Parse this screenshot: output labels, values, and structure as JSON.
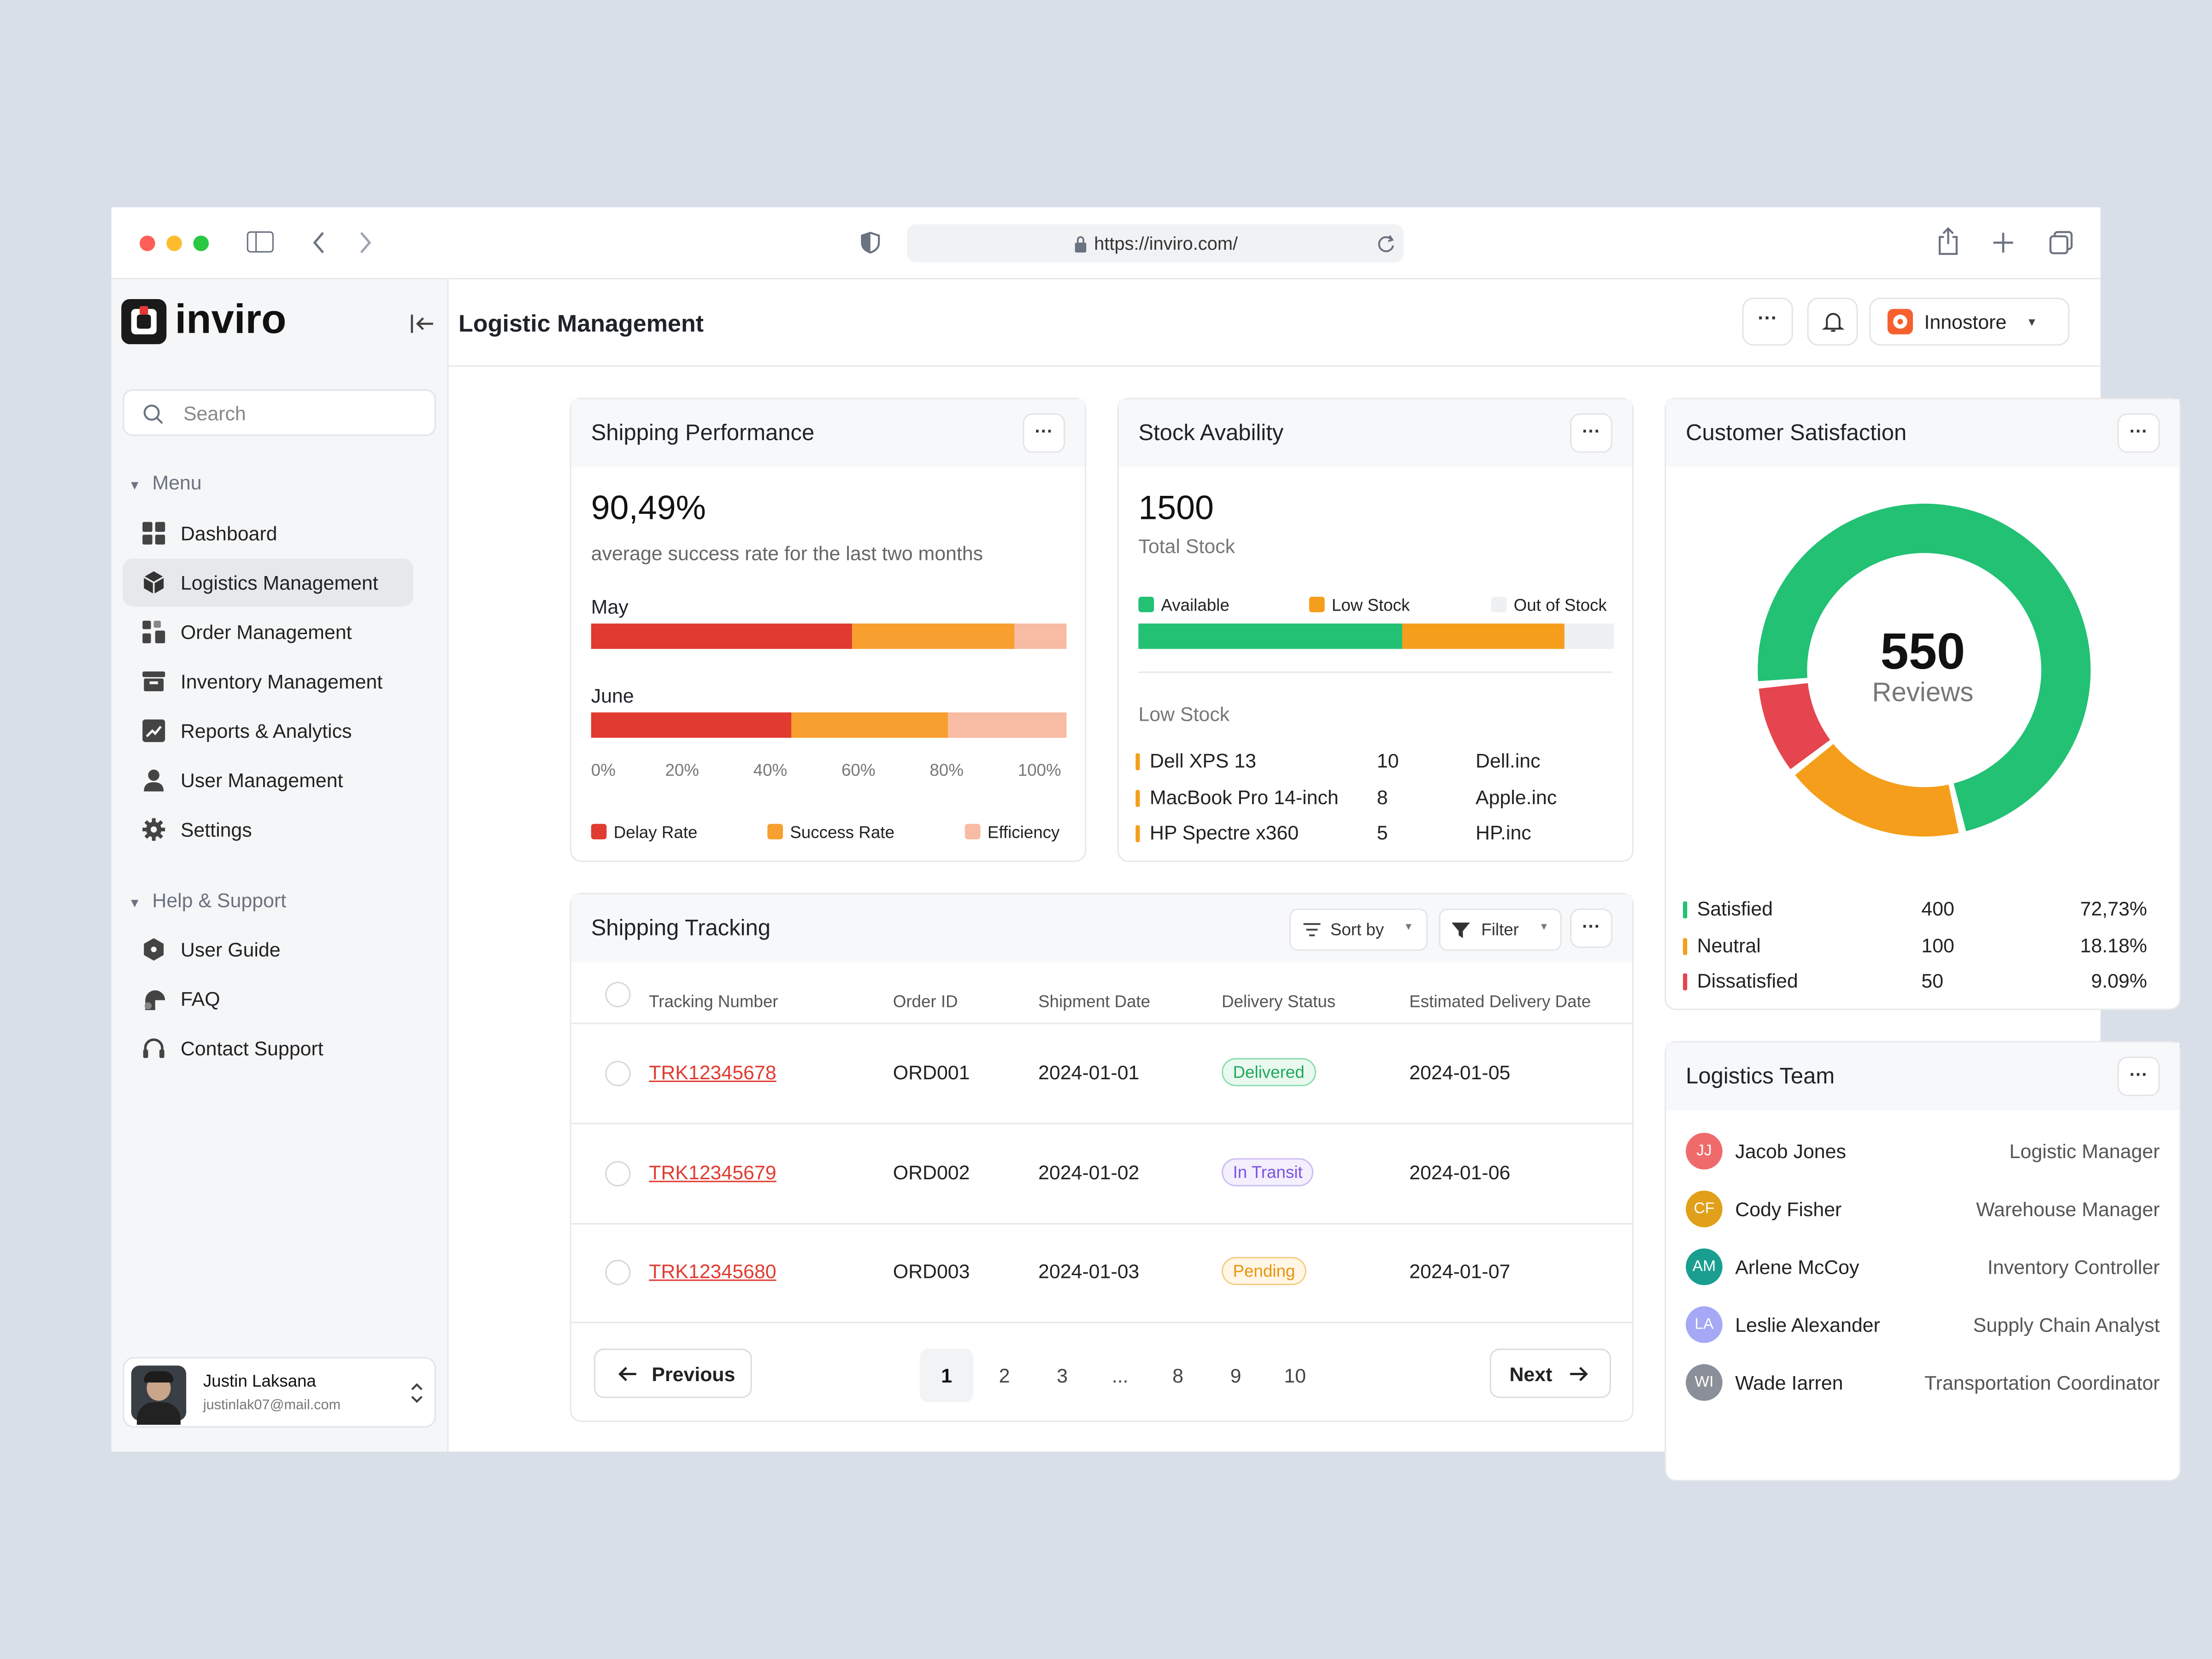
{
  "browser": {
    "url": "https://inviro.com/"
  },
  "brand": {
    "name": "inviro"
  },
  "search": {
    "placeholder": "Search"
  },
  "sidebar": {
    "menu_label": "Menu",
    "items": [
      {
        "label": "Dashboard",
        "icon": "grid-icon"
      },
      {
        "label": "Logistics Management",
        "icon": "cube-icon",
        "active": true
      },
      {
        "label": "Order Management",
        "icon": "blocks-icon"
      },
      {
        "label": "Inventory Management",
        "icon": "archive-icon"
      },
      {
        "label": "Reports & Analytics",
        "icon": "chart-icon"
      },
      {
        "label": "User Management",
        "icon": "user-icon"
      },
      {
        "label": "Settings",
        "icon": "gear-icon"
      }
    ],
    "help_label": "Help & Support",
    "help_items": [
      {
        "label": "User Guide",
        "icon": "book-icon"
      },
      {
        "label": "FAQ",
        "icon": "chat-icon"
      },
      {
        "label": "Contact Support",
        "icon": "headset-icon"
      }
    ],
    "user": {
      "name": "Justin Laksana",
      "email": "justinlak07@mail.com"
    }
  },
  "header": {
    "title": "Logistic Management",
    "store": "Innostore"
  },
  "shipping_performance": {
    "title": "Shipping Performance",
    "value": "90,49%",
    "caption": "average success rate for the last two months",
    "months": [
      {
        "label": "May",
        "delay": 55,
        "success": 34,
        "efficiency": 11
      },
      {
        "label": "June",
        "delay": 42,
        "success": 33,
        "efficiency": 25
      }
    ],
    "ticks": [
      "0%",
      "20%",
      "40%",
      "60%",
      "80%",
      "100%"
    ],
    "legend": [
      "Delay Rate",
      "Success Rate",
      "Efficiency"
    ]
  },
  "stock": {
    "title": "Stock Avability",
    "total": "1500",
    "total_label": "Total Stock",
    "legend": [
      "Available",
      "Low Stock",
      "Out of Stock"
    ],
    "segments": {
      "available": 0.555,
      "low": 0.34,
      "out": 0.105
    },
    "low_title": "Low Stock",
    "items": [
      {
        "name": "Dell XPS 13",
        "qty": "10",
        "vendor": "Dell.inc"
      },
      {
        "name": "MacBook Pro 14-inch",
        "qty": "8",
        "vendor": "Apple.inc"
      },
      {
        "name": "HP Spectre x360",
        "qty": "5",
        "vendor": "HP.inc"
      }
    ]
  },
  "satisfaction": {
    "title": "Customer Satisfaction",
    "total": "550",
    "total_label": "Reviews",
    "rows": [
      {
        "label": "Satisfied",
        "count": "400",
        "pct": "72,73%",
        "color": "#22c174"
      },
      {
        "label": "Neutral",
        "count": "100",
        "pct": "18.18%",
        "color": "#f59e1b"
      },
      {
        "label": "Dissatisfied",
        "count": "50",
        "pct": "9.09%",
        "color": "#e5454f"
      }
    ],
    "chart_data": {
      "type": "pie",
      "categories": [
        "Satisfied",
        "Neutral",
        "Dissatisfied"
      ],
      "values": [
        400,
        100,
        50
      ]
    }
  },
  "tracking": {
    "title": "Shipping Tracking",
    "sort_label": "Sort by",
    "filter_label": "Filter",
    "columns": [
      "Tracking Number",
      "Order ID",
      "Shipment Date",
      "Delivery Status",
      "Estimated Delivery Date"
    ],
    "rows": [
      {
        "tracking": "TRK12345678",
        "order": "ORD001",
        "date": "2024-01-01",
        "status": "Delivered",
        "eta": "2024-01-05"
      },
      {
        "tracking": "TRK12345679",
        "order": "ORD002",
        "date": "2024-01-02",
        "status": "In Transit",
        "eta": "2024-01-06"
      },
      {
        "tracking": "TRK12345680",
        "order": "ORD003",
        "date": "2024-01-03",
        "status": "Pending",
        "eta": "2024-01-07"
      }
    ],
    "prev_label": "Previous",
    "next_label": "Next",
    "pages": [
      "1",
      "2",
      "3",
      "...",
      "8",
      "9",
      "10"
    ]
  },
  "team": {
    "title": "Logistics Team",
    "members": [
      {
        "initials": "JJ",
        "name": "Jacob Jones",
        "role": "Logistic Manager",
        "color": "#ef6b6b"
      },
      {
        "initials": "CF",
        "name": "Cody Fisher",
        "role": "Warehouse Manager",
        "color": "#e0a019"
      },
      {
        "initials": "AM",
        "name": "Arlene McCoy",
        "role": "Inventory Controller",
        "color": "#1a9e8f"
      },
      {
        "initials": "LA",
        "name": "Leslie Alexander",
        "role": "Supply Chain Analyst",
        "color": "#a5a8f5"
      },
      {
        "initials": "WI",
        "name": "Wade Iarren",
        "role": "Transportation Coordinator",
        "color": "#8b8f99"
      }
    ]
  }
}
